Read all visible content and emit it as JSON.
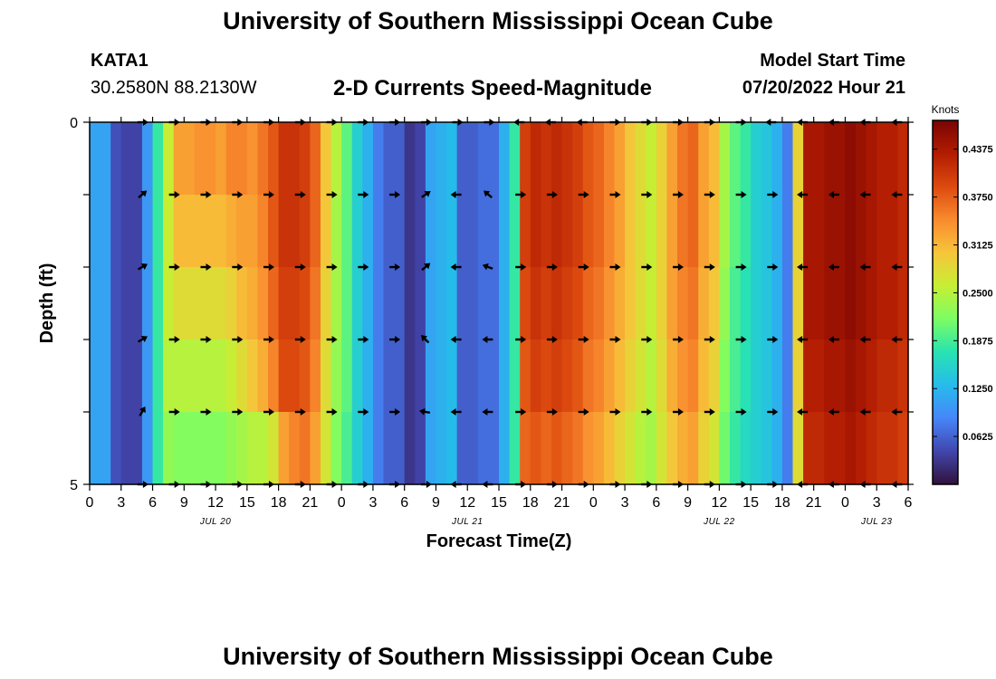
{
  "page": {
    "title": "University of Southern Mississippi Ocean Cube",
    "footer_title": "University of Southern Mississippi Ocean Cube",
    "station_id": "KATA1",
    "station_coords": "30.2580N  88.2130W",
    "plot_title": "2-D Currents Speed-Magnitude",
    "model_start_label": "Model Start Time",
    "model_start_value": "07/20/2022 Hour 21"
  },
  "chart_data": {
    "type": "heatmap",
    "title": "2-D Currents Speed-Magnitude",
    "xlabel": "Forecast Time(Z)",
    "ylabel": "Depth (ft)",
    "x_start_hour": 0,
    "x_end_hour": 78,
    "x_tick_labels": [
      "0",
      "3",
      "6",
      "9",
      "12",
      "15",
      "18",
      "21",
      "0",
      "3",
      "6",
      "9",
      "12",
      "15",
      "18",
      "21",
      "0",
      "3",
      "6",
      "9",
      "12",
      "15",
      "18",
      "21",
      "0",
      "3",
      "6"
    ],
    "date_labels": [
      {
        "label": "JUL 20",
        "hour": 12
      },
      {
        "label": "JUL 21",
        "hour": 36
      },
      {
        "label": "JUL 22",
        "hour": 60
      },
      {
        "label": "JUL 23",
        "hour": 75
      }
    ],
    "y_tick_labels": [
      "0",
      "",
      "",
      "",
      "",
      "5"
    ],
    "depth_levels": [
      0,
      1,
      2,
      3,
      4,
      5
    ],
    "colorbar": {
      "title": "Knots",
      "min": 0,
      "max": 0.475,
      "tick_labels": [
        "0.0625",
        "0.1250",
        "0.1875",
        "0.2500",
        "0.3125",
        "0.3750",
        "0.4375"
      ],
      "tick_values": [
        0.0625,
        0.125,
        0.1875,
        0.25,
        0.3125,
        0.375,
        0.4375
      ],
      "colors": [
        "#30123b",
        "#4146ad",
        "#4686fa",
        "#26bceb",
        "#28e3b1",
        "#7cfd63",
        "#c6ef34",
        "#f7c53a",
        "#f98b2e",
        "#dd4a0f",
        "#b21c02",
        "#7a0403"
      ]
    },
    "speed_knots": [
      [
        0.11,
        0.11,
        0.05,
        0.04,
        0.04,
        0.1,
        0.18,
        0.26,
        0.33,
        0.33,
        0.34,
        0.34,
        0.33,
        0.35,
        0.35,
        0.34,
        0.36,
        0.38,
        0.41,
        0.41,
        0.4,
        0.37,
        0.3,
        0.25,
        0.2,
        0.15,
        0.12,
        0.08,
        0.06,
        0.06,
        0.03,
        0.04,
        0.11,
        0.12,
        0.13,
        0.06,
        0.06,
        0.07,
        0.07,
        0.12,
        0.18,
        0.4,
        0.42,
        0.41,
        0.42,
        0.41,
        0.4,
        0.38,
        0.37,
        0.35,
        0.33,
        0.3,
        0.28,
        0.26,
        0.29,
        0.33,
        0.36,
        0.37,
        0.33,
        0.31,
        0.24,
        0.2,
        0.18,
        0.15,
        0.14,
        0.12,
        0.08,
        0.29,
        0.44,
        0.44,
        0.45,
        0.45,
        0.46,
        0.45,
        0.44,
        0.43,
        0.43,
        0.42
      ],
      [
        0.11,
        0.11,
        0.05,
        0.04,
        0.04,
        0.1,
        0.18,
        0.26,
        0.31,
        0.31,
        0.31,
        0.31,
        0.31,
        0.32,
        0.33,
        0.33,
        0.35,
        0.38,
        0.41,
        0.41,
        0.4,
        0.37,
        0.3,
        0.24,
        0.2,
        0.15,
        0.12,
        0.08,
        0.06,
        0.06,
        0.03,
        0.04,
        0.11,
        0.12,
        0.13,
        0.06,
        0.06,
        0.07,
        0.07,
        0.12,
        0.18,
        0.4,
        0.42,
        0.41,
        0.42,
        0.41,
        0.4,
        0.38,
        0.37,
        0.35,
        0.33,
        0.3,
        0.28,
        0.26,
        0.29,
        0.33,
        0.36,
        0.37,
        0.33,
        0.31,
        0.24,
        0.2,
        0.18,
        0.15,
        0.14,
        0.12,
        0.08,
        0.29,
        0.44,
        0.44,
        0.45,
        0.45,
        0.46,
        0.45,
        0.44,
        0.43,
        0.43,
        0.42
      ],
      [
        0.11,
        0.11,
        0.05,
        0.04,
        0.04,
        0.1,
        0.18,
        0.26,
        0.28,
        0.28,
        0.28,
        0.28,
        0.28,
        0.29,
        0.31,
        0.32,
        0.34,
        0.37,
        0.4,
        0.4,
        0.39,
        0.36,
        0.29,
        0.24,
        0.2,
        0.15,
        0.12,
        0.08,
        0.06,
        0.06,
        0.03,
        0.04,
        0.11,
        0.12,
        0.13,
        0.06,
        0.06,
        0.07,
        0.07,
        0.12,
        0.18,
        0.39,
        0.41,
        0.4,
        0.41,
        0.4,
        0.39,
        0.37,
        0.36,
        0.34,
        0.32,
        0.3,
        0.28,
        0.26,
        0.29,
        0.33,
        0.35,
        0.36,
        0.32,
        0.3,
        0.23,
        0.19,
        0.17,
        0.15,
        0.14,
        0.12,
        0.08,
        0.29,
        0.44,
        0.44,
        0.45,
        0.45,
        0.46,
        0.45,
        0.44,
        0.43,
        0.43,
        0.42
      ],
      [
        0.11,
        0.11,
        0.05,
        0.04,
        0.04,
        0.1,
        0.18,
        0.25,
        0.25,
        0.25,
        0.25,
        0.25,
        0.25,
        0.26,
        0.28,
        0.3,
        0.32,
        0.35,
        0.39,
        0.39,
        0.38,
        0.35,
        0.28,
        0.23,
        0.2,
        0.15,
        0.12,
        0.08,
        0.06,
        0.06,
        0.03,
        0.04,
        0.11,
        0.12,
        0.13,
        0.06,
        0.06,
        0.07,
        0.07,
        0.12,
        0.18,
        0.38,
        0.4,
        0.39,
        0.4,
        0.39,
        0.38,
        0.36,
        0.35,
        0.33,
        0.31,
        0.29,
        0.27,
        0.25,
        0.28,
        0.32,
        0.34,
        0.35,
        0.31,
        0.29,
        0.22,
        0.19,
        0.17,
        0.15,
        0.14,
        0.12,
        0.08,
        0.29,
        0.43,
        0.43,
        0.44,
        0.44,
        0.45,
        0.44,
        0.43,
        0.42,
        0.42,
        0.41
      ],
      [
        0.11,
        0.11,
        0.05,
        0.04,
        0.04,
        0.1,
        0.18,
        0.23,
        0.22,
        0.22,
        0.22,
        0.22,
        0.22,
        0.23,
        0.24,
        0.25,
        0.25,
        0.27,
        0.33,
        0.35,
        0.36,
        0.33,
        0.27,
        0.22,
        0.19,
        0.15,
        0.12,
        0.08,
        0.06,
        0.06,
        0.03,
        0.04,
        0.11,
        0.12,
        0.13,
        0.06,
        0.06,
        0.07,
        0.07,
        0.12,
        0.18,
        0.37,
        0.38,
        0.37,
        0.38,
        0.37,
        0.36,
        0.34,
        0.33,
        0.31,
        0.29,
        0.27,
        0.25,
        0.24,
        0.27,
        0.3,
        0.32,
        0.33,
        0.29,
        0.27,
        0.21,
        0.18,
        0.16,
        0.15,
        0.14,
        0.12,
        0.08,
        0.28,
        0.42,
        0.42,
        0.43,
        0.43,
        0.44,
        0.43,
        0.42,
        0.41,
        0.41,
        0.4
      ]
    ],
    "arrows": [
      {
        "depth": 0,
        "hours": [
          5,
          8,
          11,
          14,
          17,
          20,
          23,
          26,
          29,
          32,
          35,
          38,
          41,
          44,
          47,
          50,
          53,
          56,
          59,
          62,
          65,
          68,
          71,
          74,
          77
        ],
        "angles": [
          0,
          0,
          0,
          0,
          0,
          0,
          0,
          0,
          0,
          0,
          0,
          0,
          180,
          180,
          180,
          0,
          0,
          0,
          0,
          0,
          180,
          180,
          180,
          180,
          180
        ]
      },
      {
        "depth": 1,
        "hours": [
          5,
          8,
          11,
          14,
          17,
          20,
          23,
          26,
          29,
          32,
          35,
          38,
          41,
          44,
          47,
          50,
          53,
          56,
          59,
          62,
          65,
          68,
          71,
          74,
          77
        ],
        "angles": [
          -40,
          0,
          0,
          0,
          0,
          0,
          0,
          0,
          0,
          -35,
          180,
          220,
          0,
          0,
          0,
          0,
          0,
          0,
          0,
          0,
          0,
          180,
          180,
          180,
          180
        ]
      },
      {
        "depth": 2,
        "hours": [
          5,
          8,
          11,
          14,
          17,
          20,
          23,
          26,
          29,
          32,
          35,
          38,
          41,
          44,
          47,
          50,
          53,
          56,
          59,
          62,
          65,
          68,
          71,
          74,
          77
        ],
        "angles": [
          -30,
          0,
          0,
          0,
          0,
          0,
          0,
          0,
          0,
          -40,
          180,
          200,
          0,
          0,
          0,
          0,
          0,
          0,
          0,
          0,
          0,
          180,
          180,
          180,
          180
        ]
      },
      {
        "depth": 3,
        "hours": [
          5,
          8,
          11,
          14,
          17,
          20,
          23,
          26,
          29,
          32,
          35,
          38,
          41,
          44,
          47,
          50,
          53,
          56,
          59,
          62,
          65,
          68,
          71,
          74,
          77
        ],
        "angles": [
          -30,
          0,
          0,
          0,
          0,
          0,
          0,
          0,
          0,
          225,
          180,
          180,
          0,
          0,
          0,
          0,
          0,
          0,
          0,
          0,
          0,
          180,
          180,
          180,
          180
        ]
      },
      {
        "depth": 4,
        "hours": [
          5,
          8,
          11,
          14,
          17,
          20,
          23,
          26,
          29,
          32,
          35,
          38,
          41,
          44,
          47,
          50,
          53,
          56,
          59,
          62,
          65,
          68,
          71,
          74,
          77
        ],
        "angles": [
          -60,
          0,
          0,
          0,
          0,
          0,
          0,
          0,
          0,
          190,
          180,
          180,
          0,
          0,
          0,
          0,
          0,
          0,
          0,
          0,
          0,
          180,
          180,
          180,
          180
        ]
      },
      {
        "depth": 5,
        "hours": [
          5,
          8,
          11,
          14,
          17,
          20,
          23,
          26,
          29,
          32,
          35,
          38,
          41,
          44,
          47,
          50,
          53,
          56,
          59,
          62,
          65,
          68,
          71,
          74,
          77
        ],
        "angles": [
          0,
          0,
          0,
          0,
          0,
          0,
          0,
          0,
          0,
          0,
          180,
          180,
          0,
          0,
          0,
          0,
          0,
          0,
          0,
          0,
          0,
          180,
          180,
          180,
          180
        ]
      }
    ]
  }
}
